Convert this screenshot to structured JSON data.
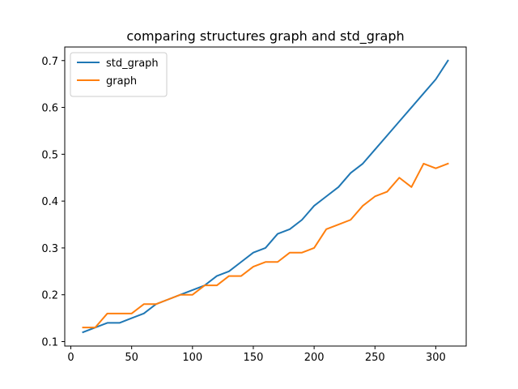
{
  "chart_data": {
    "type": "line",
    "title": "comparing structures graph and std_graph",
    "xlabel": "",
    "ylabel": "",
    "xlim": [
      -5,
      325
    ],
    "ylim": [
      0.0905,
      0.729
    ],
    "xticks": [
      0,
      50,
      100,
      150,
      200,
      250,
      300
    ],
    "yticks": [
      0.1,
      0.2,
      0.3,
      0.4,
      0.5,
      0.6,
      0.7
    ],
    "grid": false,
    "legend_position": "top-left",
    "x": [
      10,
      20,
      30,
      40,
      50,
      60,
      70,
      80,
      90,
      100,
      110,
      120,
      130,
      140,
      150,
      160,
      170,
      180,
      190,
      200,
      210,
      220,
      230,
      240,
      250,
      260,
      270,
      280,
      290,
      300,
      310
    ],
    "series": [
      {
        "name": "std_graph",
        "color": "#1f77b4",
        "values": [
          0.12,
          0.13,
          0.14,
          0.14,
          0.15,
          0.16,
          0.18,
          0.19,
          0.2,
          0.21,
          0.22,
          0.24,
          0.25,
          0.27,
          0.29,
          0.3,
          0.33,
          0.34,
          0.36,
          0.39,
          0.41,
          0.43,
          0.46,
          0.48,
          0.51,
          0.54,
          0.57,
          0.6,
          0.63,
          0.66,
          0.7
        ]
      },
      {
        "name": "graph",
        "color": "#ff7f0e",
        "values": [
          0.13,
          0.13,
          0.16,
          0.16,
          0.16,
          0.18,
          0.18,
          0.19,
          0.2,
          0.2,
          0.22,
          0.22,
          0.24,
          0.24,
          0.26,
          0.27,
          0.27,
          0.29,
          0.29,
          0.3,
          0.34,
          0.35,
          0.36,
          0.39,
          0.41,
          0.42,
          0.45,
          0.43,
          0.48,
          0.47,
          0.48
        ]
      }
    ]
  }
}
